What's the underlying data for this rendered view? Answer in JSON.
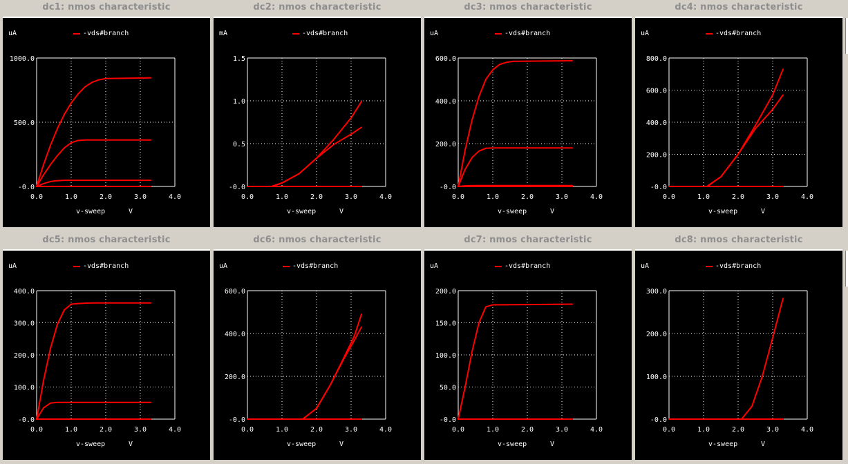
{
  "colors": {
    "trace": "#ff0000",
    "grid": "#ffffff",
    "background": "#000000",
    "title": "#8e8e8e"
  },
  "chart_data": [
    {
      "title": "dc1: nmos characteristic",
      "type": "line",
      "unit": "uA",
      "legend": "-vds#branch",
      "xlabel": "v-sweep",
      "xunit": "V",
      "xlim": [
        0,
        4
      ],
      "ylim": [
        0,
        1000
      ],
      "xticks": [
        "0.0",
        "1.0",
        "2.0",
        "3.0",
        "4.0"
      ],
      "yticks": [
        "-0.0",
        "500.0",
        "1000.0"
      ],
      "series": [
        {
          "x": [
            0,
            0.2,
            0.4,
            0.6,
            0.8,
            1.0,
            1.2,
            1.4,
            1.6,
            1.8,
            2.0,
            3.3
          ],
          "y": [
            0,
            170,
            320,
            450,
            560,
            650,
            720,
            775,
            810,
            830,
            840,
            845
          ]
        },
        {
          "x": [
            0,
            0.2,
            0.4,
            0.6,
            0.8,
            1.0,
            1.2,
            1.4,
            1.6,
            3.3
          ],
          "y": [
            0,
            90,
            170,
            240,
            300,
            340,
            358,
            362,
            362,
            362
          ]
        },
        {
          "x": [
            0,
            0.2,
            0.4,
            0.6,
            0.8,
            3.3
          ],
          "y": [
            0,
            22,
            38,
            45,
            48,
            48
          ]
        },
        {
          "x": [
            0,
            3.3
          ],
          "y": [
            0,
            0
          ]
        }
      ]
    },
    {
      "title": "dc2: nmos characteristic",
      "type": "line",
      "unit": "mA",
      "legend": "-vds#branch",
      "xlabel": "v-sweep",
      "xunit": "V",
      "xlim": [
        0,
        4
      ],
      "ylim": [
        0,
        1.5
      ],
      "xticks": [
        "0.0",
        "1.0",
        "2.0",
        "3.0",
        "4.0"
      ],
      "yticks": [
        "-0.0",
        "0.5",
        "1.0",
        "1.5"
      ],
      "series": [
        {
          "x": [
            0,
            0.7,
            1.0,
            1.5,
            2.0,
            2.5,
            3.0,
            3.3
          ],
          "y": [
            0,
            0,
            0.04,
            0.15,
            0.33,
            0.55,
            0.8,
            0.99
          ]
        },
        {
          "x": [
            0,
            0.7,
            1.0,
            1.5,
            2.0,
            2.5,
            3.0,
            3.3
          ],
          "y": [
            0,
            0,
            0.04,
            0.15,
            0.33,
            0.49,
            0.61,
            0.69
          ]
        },
        {
          "x": [
            0,
            3.3
          ],
          "y": [
            0,
            0
          ]
        }
      ]
    },
    {
      "title": "dc3: nmos characteristic",
      "type": "line",
      "unit": "uA",
      "legend": "-vds#branch",
      "xlabel": "v-sweep",
      "xunit": "V",
      "xlim": [
        0,
        4
      ],
      "ylim": [
        0,
        600
      ],
      "xticks": [
        "0.0",
        "1.0",
        "2.0",
        "3.0",
        "4.0"
      ],
      "yticks": [
        "-0.0",
        "200.0",
        "400.0",
        "600.0"
      ],
      "series": [
        {
          "x": [
            0,
            0.2,
            0.4,
            0.6,
            0.8,
            1.0,
            1.2,
            1.4,
            1.6,
            1.8,
            3.3
          ],
          "y": [
            0,
            170,
            310,
            420,
            500,
            545,
            570,
            580,
            585,
            585,
            587
          ]
        },
        {
          "x": [
            0,
            0.2,
            0.4,
            0.6,
            0.8,
            1.0,
            3.3
          ],
          "y": [
            0,
            80,
            135,
            165,
            178,
            180,
            180
          ]
        },
        {
          "x": [
            0,
            0.2,
            0.4,
            3.3
          ],
          "y": [
            0,
            3,
            4,
            4
          ]
        },
        {
          "x": [
            0,
            3.3
          ],
          "y": [
            0,
            0
          ]
        }
      ]
    },
    {
      "title": "dc4: nmos characteristic",
      "type": "line",
      "unit": "uA",
      "legend": "-vds#branch",
      "xlabel": "v-sweep",
      "xunit": "V",
      "xlim": [
        0,
        4
      ],
      "ylim": [
        0,
        800
      ],
      "xticks": [
        "0.0",
        "1.0",
        "2.0",
        "3.0",
        "4.0"
      ],
      "yticks": [
        "-0.0",
        "200.0",
        "400.0",
        "600.0",
        "800.0"
      ],
      "series": [
        {
          "x": [
            0,
            1.1,
            1.5,
            2.0,
            2.5,
            3.0,
            3.3
          ],
          "y": [
            0,
            0,
            60,
            200,
            380,
            570,
            730
          ]
        },
        {
          "x": [
            0,
            1.1,
            1.5,
            2.0,
            2.5,
            3.0,
            3.3
          ],
          "y": [
            0,
            0,
            60,
            200,
            360,
            480,
            570
          ]
        },
        {
          "x": [
            0,
            3.3
          ],
          "y": [
            0,
            0
          ]
        }
      ]
    },
    {
      "title": "dc5: nmos characteristic",
      "type": "line",
      "unit": "uA",
      "legend": "-vds#branch",
      "xlabel": "v-sweep",
      "xunit": "V",
      "xlim": [
        0,
        4
      ],
      "ylim": [
        0,
        400
      ],
      "xticks": [
        "0.0",
        "1.0",
        "2.0",
        "3.0",
        "4.0"
      ],
      "yticks": [
        "-0.0",
        "100.0",
        "200.0",
        "300.0",
        "400.0"
      ],
      "series": [
        {
          "x": [
            0,
            0.2,
            0.4,
            0.6,
            0.8,
            1.0,
            1.2,
            1.6,
            3.3
          ],
          "y": [
            0,
            120,
            220,
            295,
            340,
            358,
            360,
            362,
            362
          ]
        },
        {
          "x": [
            0,
            0.2,
            0.4,
            0.6,
            3.3
          ],
          "y": [
            0,
            35,
            50,
            52,
            52
          ]
        },
        {
          "x": [
            0,
            3.3
          ],
          "y": [
            0,
            0
          ]
        }
      ]
    },
    {
      "title": "dc6: nmos characteristic",
      "type": "line",
      "unit": "uA",
      "legend": "-vds#branch",
      "xlabel": "v-sweep",
      "xunit": "V",
      "xlim": [
        0,
        4
      ],
      "ylim": [
        0,
        600
      ],
      "xticks": [
        "0.0",
        "1.0",
        "2.0",
        "3.0",
        "4.0"
      ],
      "yticks": [
        "-0.0",
        "200.0",
        "400.0",
        "600.0"
      ],
      "series": [
        {
          "x": [
            0,
            1.6,
            2.0,
            2.4,
            2.8,
            3.1,
            3.3
          ],
          "y": [
            0,
            0,
            50,
            160,
            290,
            390,
            490
          ]
        },
        {
          "x": [
            0,
            1.6,
            2.0,
            2.4,
            2.8,
            3.1,
            3.3
          ],
          "y": [
            0,
            0,
            50,
            160,
            285,
            370,
            430
          ]
        },
        {
          "x": [
            0,
            3.3
          ],
          "y": [
            0,
            0
          ]
        }
      ]
    },
    {
      "title": "dc7: nmos characteristic",
      "type": "line",
      "unit": "uA",
      "legend": "-vds#branch",
      "xlabel": "v-sweep",
      "xunit": "V",
      "xlim": [
        0,
        4
      ],
      "ylim": [
        0,
        200
      ],
      "xticks": [
        "0.0",
        "1.0",
        "2.0",
        "3.0",
        "4.0"
      ],
      "yticks": [
        "-0.0",
        "50.0",
        "100.0",
        "150.0",
        "200.0"
      ],
      "series": [
        {
          "x": [
            0,
            0.2,
            0.4,
            0.6,
            0.8,
            1.0,
            3.3
          ],
          "y": [
            0,
            50,
            105,
            150,
            175,
            178,
            179
          ]
        },
        {
          "x": [
            0,
            3.3
          ],
          "y": [
            0,
            0
          ]
        }
      ]
    },
    {
      "title": "dc8: nmos characteristic",
      "type": "line",
      "unit": "uA",
      "legend": "-vds#branch",
      "xlabel": "v-sweep",
      "xunit": "V",
      "xlim": [
        0,
        4
      ],
      "ylim": [
        0,
        300
      ],
      "xticks": [
        "0.0",
        "1.0",
        "2.0",
        "3.0",
        "4.0"
      ],
      "yticks": [
        "-0.0",
        "100.0",
        "200.0",
        "300.0"
      ],
      "series": [
        {
          "x": [
            0,
            2.1,
            2.4,
            2.7,
            3.0,
            3.3
          ],
          "y": [
            0,
            0,
            30,
            100,
            190,
            282
          ]
        },
        {
          "x": [
            0,
            3.3
          ],
          "y": [
            0,
            0
          ]
        }
      ]
    }
  ]
}
